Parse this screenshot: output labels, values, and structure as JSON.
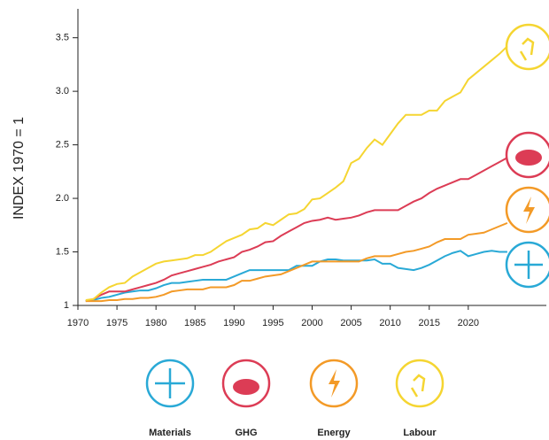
{
  "chart_data": {
    "type": "line",
    "y_label": "INDEX 1970 = 1",
    "x": [
      1971,
      1972,
      1973,
      1974,
      1975,
      1976,
      1977,
      1978,
      1979,
      1980,
      1981,
      1982,
      1983,
      1984,
      1985,
      1986,
      1987,
      1988,
      1989,
      1990,
      1991,
      1992,
      1993,
      1994,
      1995,
      1996,
      1997,
      1998,
      1999,
      2000,
      2001,
      2002,
      2003,
      2004,
      2005,
      2006,
      2007,
      2008,
      2009,
      2010,
      2011,
      2012,
      2013,
      2014,
      2015,
      2016,
      2017,
      2018,
      2019,
      2020,
      2021,
      2022,
      2023,
      2024,
      2025
    ],
    "series": [
      {
        "name": "Materials",
        "color": "#29a9d6",
        "values": [
          1.04,
          1.05,
          1.07,
          1.08,
          1.1,
          1.12,
          1.13,
          1.14,
          1.14,
          1.16,
          1.19,
          1.21,
          1.21,
          1.22,
          1.23,
          1.24,
          1.24,
          1.24,
          1.24,
          1.27,
          1.3,
          1.33,
          1.33,
          1.33,
          1.33,
          1.33,
          1.33,
          1.37,
          1.37,
          1.37,
          1.41,
          1.43,
          1.43,
          1.42,
          1.42,
          1.42,
          1.42,
          1.43,
          1.39,
          1.39,
          1.35,
          1.34,
          1.33,
          1.35,
          1.38,
          1.42,
          1.46,
          1.49,
          1.51,
          1.46,
          1.48,
          1.5,
          1.51,
          1.5,
          1.5
        ]
      },
      {
        "name": "GHG",
        "color": "#dc3c55",
        "values": [
          1.04,
          1.06,
          1.1,
          1.13,
          1.13,
          1.13,
          1.15,
          1.17,
          1.19,
          1.21,
          1.24,
          1.28,
          1.3,
          1.32,
          1.34,
          1.36,
          1.38,
          1.41,
          1.43,
          1.45,
          1.5,
          1.52,
          1.55,
          1.59,
          1.6,
          1.65,
          1.69,
          1.73,
          1.77,
          1.79,
          1.8,
          1.82,
          1.8,
          1.81,
          1.82,
          1.84,
          1.87,
          1.89,
          1.89,
          1.89,
          1.89,
          1.93,
          1.97,
          2.0,
          2.05,
          2.09,
          2.12,
          2.15,
          2.18,
          2.18,
          2.22,
          2.26,
          2.3,
          2.34,
          2.38
        ]
      },
      {
        "name": "Energy",
        "color": "#f39a27",
        "values": [
          1.04,
          1.04,
          1.04,
          1.05,
          1.05,
          1.06,
          1.06,
          1.07,
          1.07,
          1.08,
          1.1,
          1.13,
          1.14,
          1.15,
          1.15,
          1.15,
          1.17,
          1.17,
          1.17,
          1.19,
          1.23,
          1.23,
          1.25,
          1.27,
          1.28,
          1.29,
          1.32,
          1.35,
          1.38,
          1.41,
          1.41,
          1.41,
          1.41,
          1.41,
          1.41,
          1.41,
          1.44,
          1.46,
          1.46,
          1.46,
          1.48,
          1.5,
          1.51,
          1.53,
          1.55,
          1.59,
          1.62,
          1.62,
          1.62,
          1.66,
          1.67,
          1.68,
          1.71,
          1.74,
          1.77
        ]
      },
      {
        "name": "Labour",
        "color": "#f5d531",
        "values": [
          1.05,
          1.06,
          1.12,
          1.17,
          1.2,
          1.21,
          1.27,
          1.31,
          1.35,
          1.39,
          1.41,
          1.42,
          1.43,
          1.44,
          1.47,
          1.47,
          1.5,
          1.55,
          1.6,
          1.63,
          1.66,
          1.71,
          1.72,
          1.77,
          1.75,
          1.8,
          1.85,
          1.86,
          1.9,
          1.99,
          2.0,
          2.05,
          2.1,
          2.16,
          2.33,
          2.37,
          2.47,
          2.55,
          2.5,
          2.6,
          2.7,
          2.78,
          2.78,
          2.78,
          2.82,
          2.82,
          2.91,
          2.95,
          2.99,
          3.11,
          3.17,
          3.23,
          3.29,
          3.35,
          3.42
        ]
      }
    ],
    "xlim": [
      1970,
      2030
    ],
    "xticks": [
      1970,
      1975,
      1980,
      1985,
      1990,
      1995,
      2000,
      2005,
      2010,
      2015,
      2020
    ],
    "ylim": [
      1,
      3.77
    ],
    "yticks": [
      1,
      1.5,
      {
        "value": 2,
        "label": "2.0"
      },
      {
        "value": 2.5,
        "label": "2.5"
      },
      {
        "value": 3,
        "label": "3.0"
      },
      3.5
    ]
  }
}
